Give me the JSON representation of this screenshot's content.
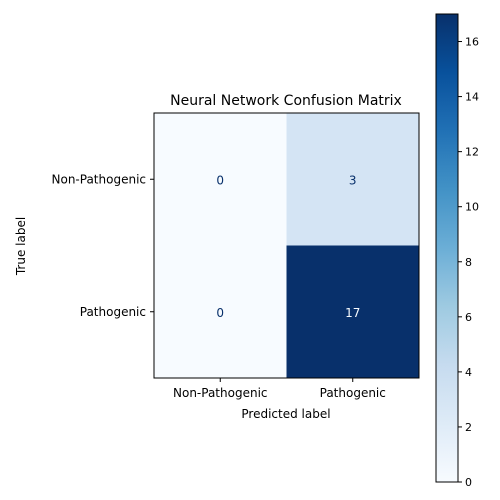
{
  "chart_data": {
    "type": "heatmap",
    "title": "Neural Network Confusion Matrix",
    "xlabel": "Predicted label",
    "ylabel": "True label",
    "x_categories": [
      "Non-Pathogenic",
      "Pathogenic"
    ],
    "y_categories": [
      "Non-Pathogenic",
      "Pathogenic"
    ],
    "values": [
      [
        0,
        3
      ],
      [
        0,
        17
      ]
    ],
    "colormap": "Blues",
    "color_range": [
      0,
      17
    ],
    "colorbar_ticks": [
      0,
      2,
      4,
      6,
      8,
      10,
      12,
      14,
      16
    ],
    "colorbar_tick_labels": [
      "0",
      "2",
      "4",
      "6",
      "8",
      "10",
      "12",
      "14",
      "16"
    ],
    "grid": false,
    "colorbar_position": "right"
  }
}
